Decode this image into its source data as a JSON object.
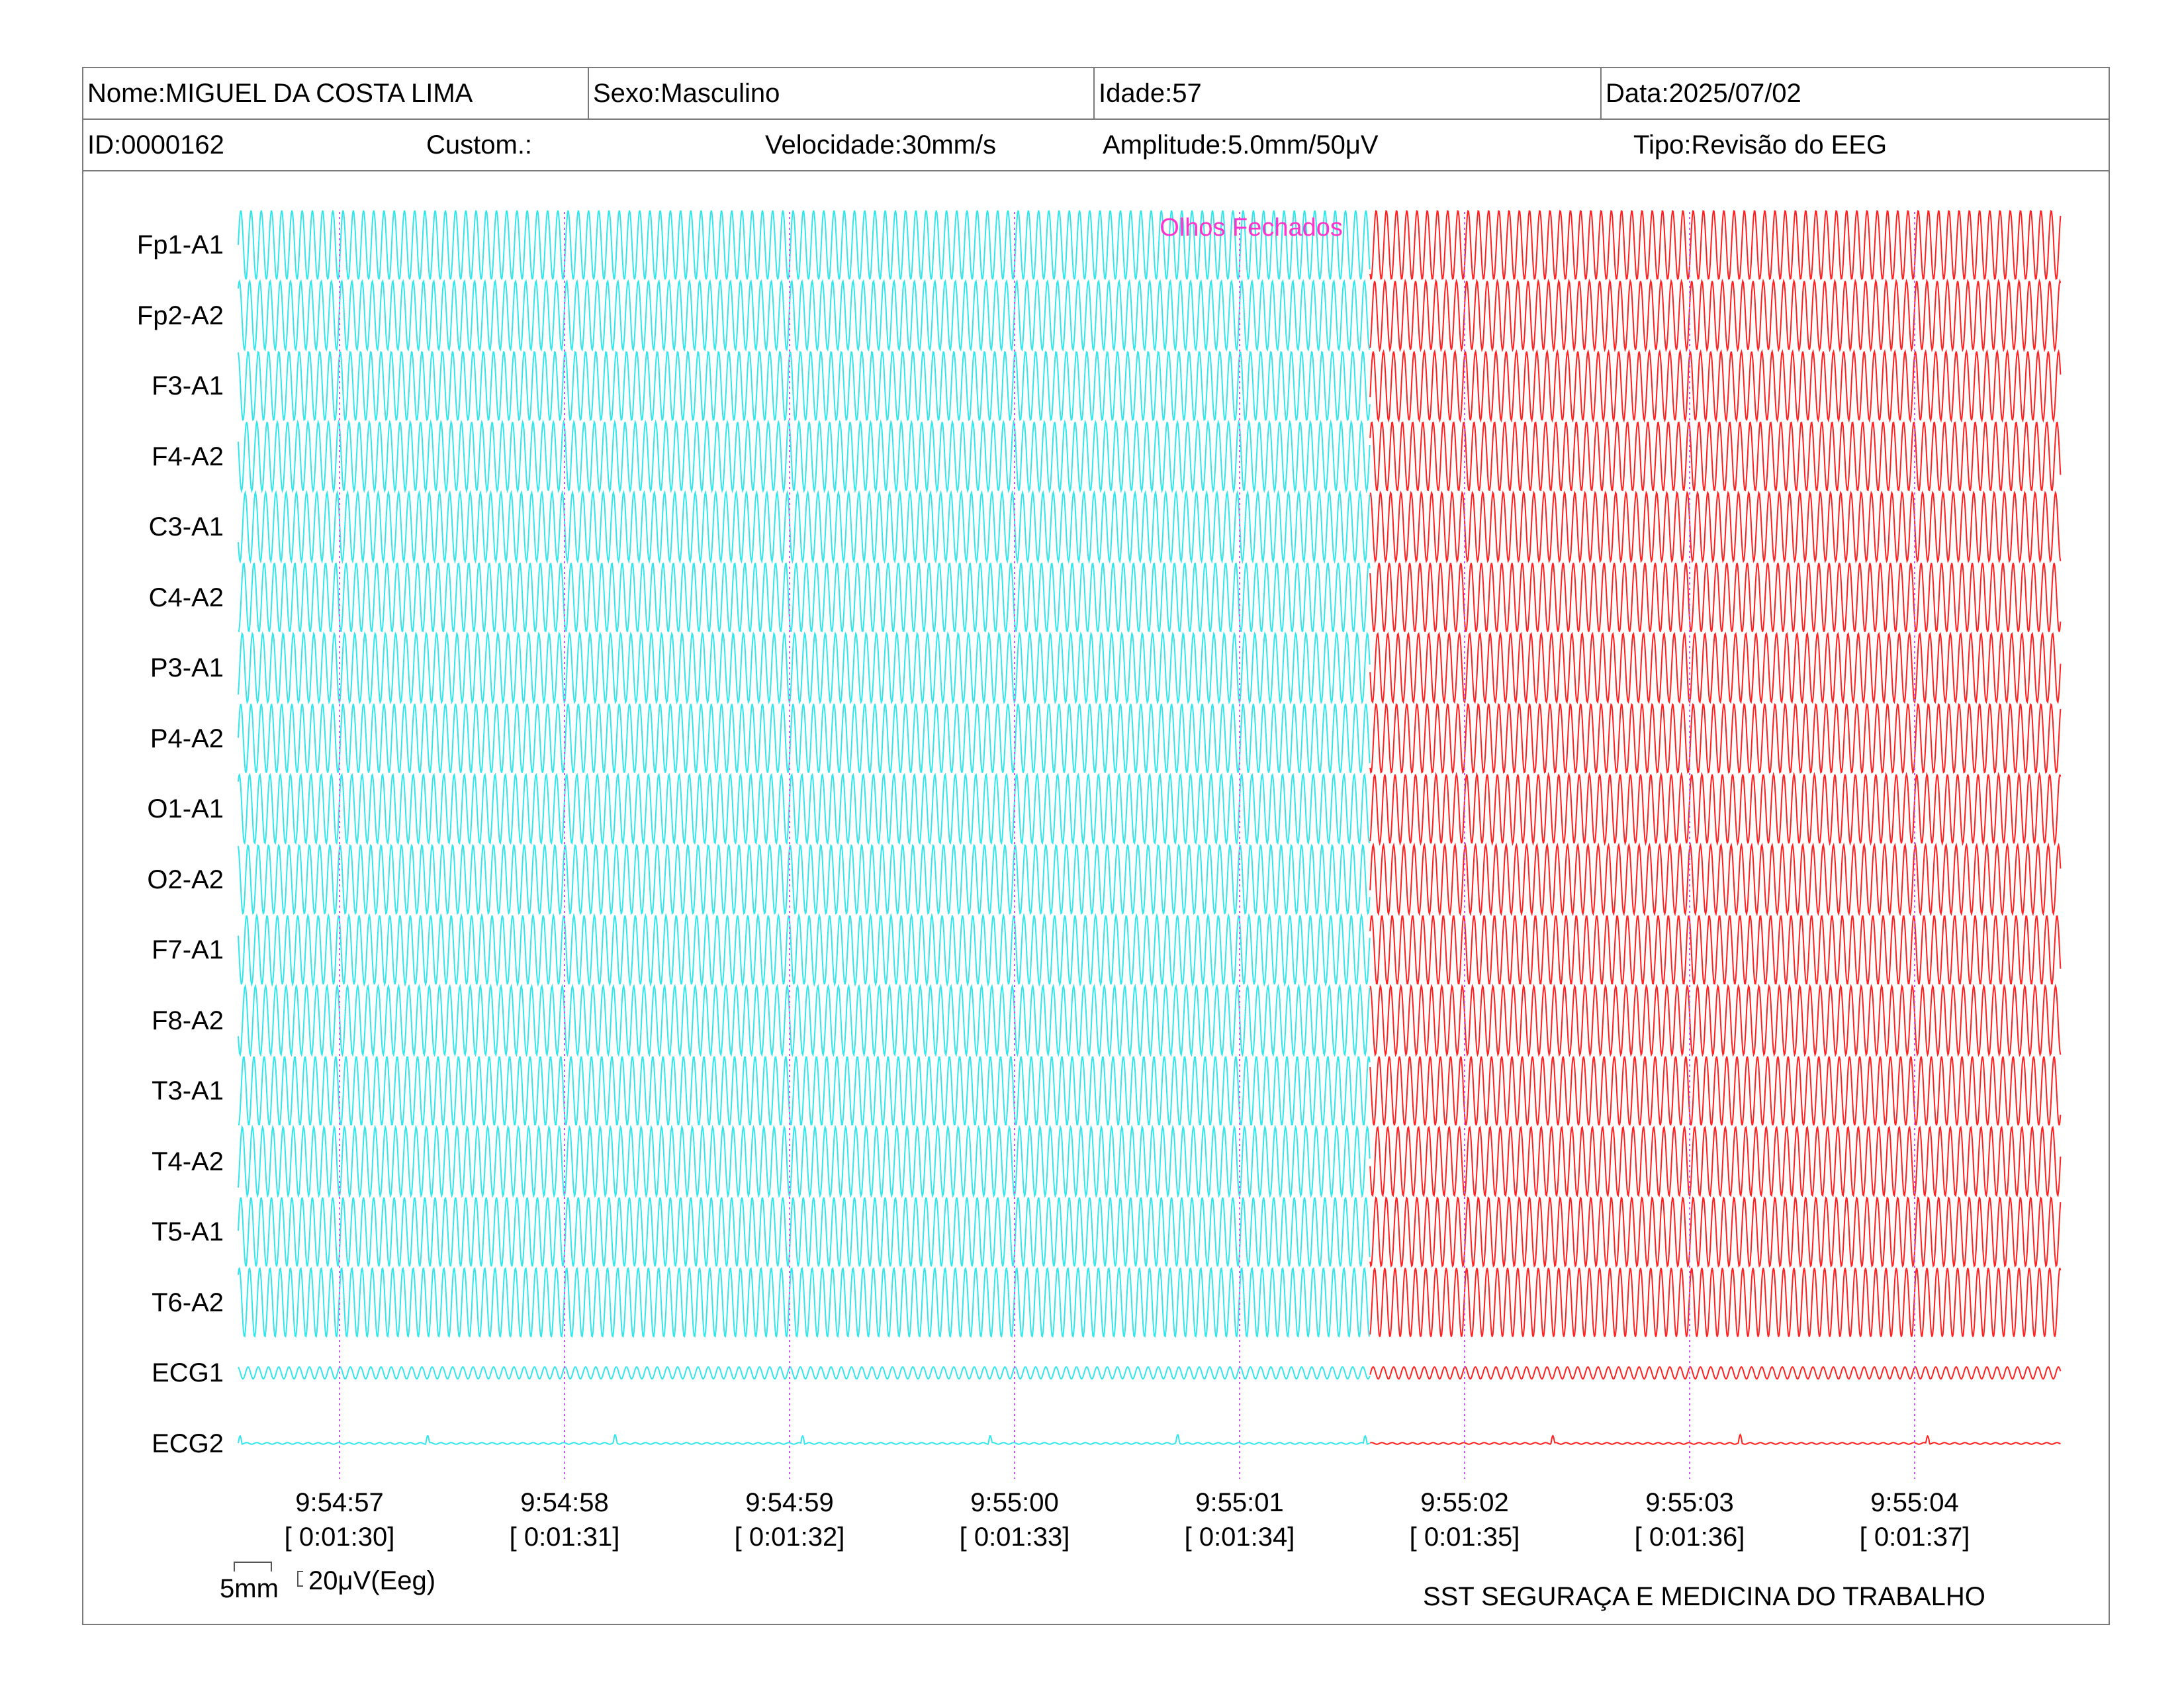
{
  "header": {
    "name": "Nome:MIGUEL DA COSTA LIMA",
    "sex": "Sexo:Masculino",
    "age": "Idade:57",
    "date": "Data:2025/07/02",
    "id": "ID:0000162",
    "custom": "Custom.:",
    "speed": "Velocidade:30mm/s",
    "amplitude": "Amplitude:5.0mm/50μV",
    "type": "Tipo:Revisão do EEG"
  },
  "annotation": {
    "text": "Olhos Fechados",
    "color": "#ff33cc",
    "at_time": "9:55:01.58"
  },
  "scale": {
    "length_label": "5mm",
    "amplitude_label": "20μV(Eeg)"
  },
  "footer": {
    "organization": "SST SEGURAÇA E MEDICINA DO TRABALHO"
  },
  "colors": {
    "before_annotation": "#33e6ec",
    "after_annotation": "#ff2020",
    "time_marker": "#cc55ee"
  },
  "chart_data": {
    "type": "line",
    "title": "",
    "channels": [
      "Fp1-A1",
      "Fp2-A2",
      "F3-A1",
      "F4-A2",
      "C3-A1",
      "C4-A2",
      "P3-A1",
      "P4-A2",
      "O1-A1",
      "O2-A2",
      "F7-A1",
      "F8-A2",
      "T3-A1",
      "T4-A2",
      "T5-A1",
      "T6-A2",
      "ECG1",
      "ECG2"
    ],
    "x_ticks": [
      {
        "clock": "9:54:57",
        "elapsed": "[ 0:01:30]"
      },
      {
        "clock": "9:54:58",
        "elapsed": "[ 0:01:31]"
      },
      {
        "clock": "9:54:59",
        "elapsed": "[ 0:01:32]"
      },
      {
        "clock": "9:55:00",
        "elapsed": "[ 0:01:33]"
      },
      {
        "clock": "9:55:01",
        "elapsed": "[ 0:01:34]"
      },
      {
        "clock": "9:55:02",
        "elapsed": "[ 0:01:35]"
      },
      {
        "clock": "9:55:03",
        "elapsed": "[ 0:01:36]"
      },
      {
        "clock": "9:55:04",
        "elapsed": "[ 0:01:37]"
      }
    ],
    "x_range_seconds": [
      0,
      8.1
    ],
    "annotation_time_seconds": 5.03,
    "eeg_frequency_hz": 22,
    "grid": "vertical dotted second markers"
  }
}
